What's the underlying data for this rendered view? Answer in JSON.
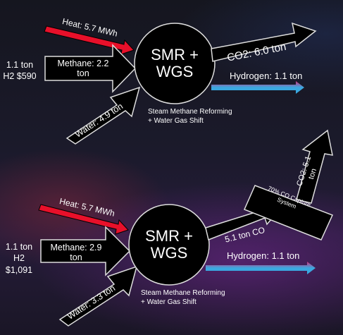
{
  "top": {
    "heat": "Heat: 5.7 MWh",
    "methane_line1": "Methane: 2.2",
    "methane_line2": "ton",
    "water": "Water: 4.9 ton",
    "process_line1": "SMR +",
    "process_line2": "WGS",
    "co2": "CO2: 6.0 ton",
    "hydrogen": "Hydrogen: 1.1 ton",
    "note_line1": "Steam Methane Reforming",
    "note_line2": "+ Water Gas Shift",
    "cost_line1": "1.1 ton",
    "cost_line2": "H2 $590"
  },
  "bottom": {
    "heat": "Heat: 5.7 MWh",
    "methane_line1": "Methane: 2.9",
    "methane_line2": "ton",
    "water": "Water: 3.3 ton",
    "process_line1": "SMR +",
    "process_line2": "WGS",
    "co": "5.1 ton CO",
    "hydrogen": "Hydrogen: 1.1 ton",
    "note_line1": "Steam Methane Reforming",
    "note_line2": "+ Water Gas Shift",
    "cost_line1": "1.1 ton",
    "cost_line2": "H2",
    "cost_line3": "$1,091",
    "capture_line1": "70% CO Capture",
    "capture_line2": "System",
    "co2_line1": "CO2: 5.1",
    "co2_line2": "ton"
  },
  "colors": {
    "heat": "#e8102a",
    "hydrogen": "#3aa8e0",
    "shape": "#000000",
    "text": "#ffffff"
  }
}
